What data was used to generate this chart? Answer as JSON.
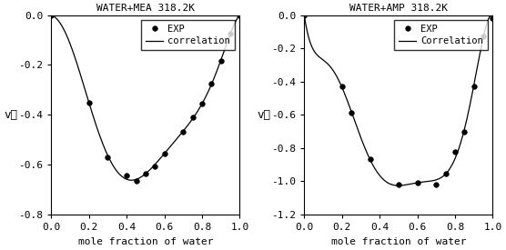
{
  "left_title": "WATER+MEA 318.2K",
  "right_title": "WATER+AMP 318.2K",
  "xlabel": "mole fraction of water",
  "left_ylabel": "vᴇ",
  "right_ylabel": "vᴇ",
  "left_exp_x": [
    0.0,
    0.2,
    0.3,
    0.4,
    0.45,
    0.5,
    0.55,
    0.6,
    0.7,
    0.75,
    0.8,
    0.85,
    0.9,
    0.95,
    1.0
  ],
  "left_exp_y": [
    0.0,
    -0.35,
    -0.57,
    -0.645,
    -0.665,
    -0.635,
    -0.605,
    -0.555,
    -0.47,
    -0.41,
    -0.355,
    -0.275,
    -0.185,
    -0.075,
    0.0
  ],
  "right_exp_x": [
    0.0,
    0.2,
    0.25,
    0.35,
    0.5,
    0.6,
    0.7,
    0.75,
    0.8,
    0.85,
    0.9,
    0.95,
    1.0
  ],
  "right_exp_y": [
    0.0,
    -0.43,
    -0.59,
    -0.865,
    -1.02,
    -1.01,
    -1.02,
    -0.955,
    -0.82,
    -0.7,
    -0.43,
    -0.13,
    -0.02
  ],
  "left_ylim": [
    -0.8,
    0.0
  ],
  "right_ylim": [
    -1.2,
    0.0
  ],
  "xlim": [
    0.0,
    1.0
  ],
  "left_yticks": [
    0.0,
    -0.2,
    -0.4,
    -0.6,
    -0.8
  ],
  "right_yticks": [
    0.0,
    -0.2,
    -0.4,
    -0.6,
    -0.8,
    -1.0,
    -1.2
  ],
  "xticks": [
    0.0,
    0.2,
    0.4,
    0.6,
    0.8,
    1.0
  ],
  "left_legend_dot": "EXP",
  "left_legend_line": "correlation",
  "right_legend_dot": "EXP",
  "right_legend_line": "Correlation",
  "dot_color": "#000000",
  "line_color": "#000000",
  "bg_color": "#ffffff",
  "fontsize": 8,
  "title_fontsize": 8
}
